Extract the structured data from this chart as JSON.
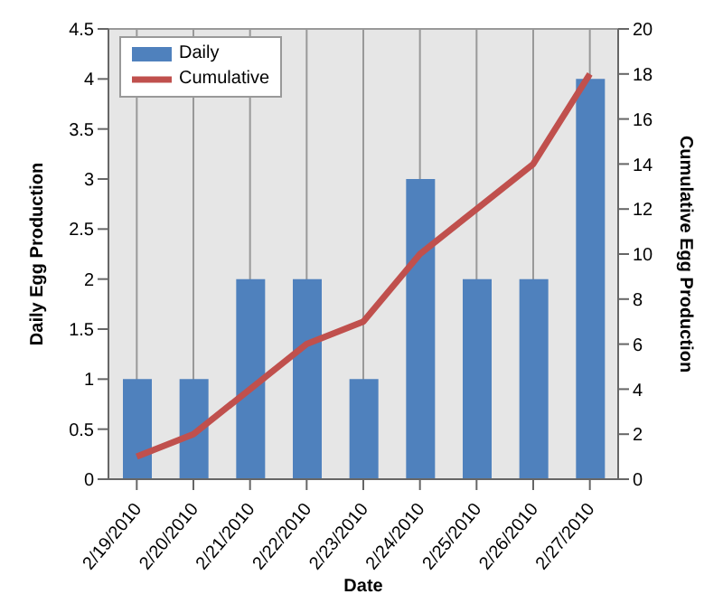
{
  "chart_data": {
    "type": "bar",
    "xlabel": "Date",
    "ylabel": "Daily Egg Production",
    "y2label": "Cumulative Egg Production",
    "categories": [
      "2/19/2010",
      "2/20/2010",
      "2/21/2010",
      "2/22/2010",
      "2/23/2010",
      "2/24/2010",
      "2/25/2010",
      "2/26/2010",
      "2/27/2010"
    ],
    "series": [
      {
        "name": "Daily",
        "color": "#4f81bd",
        "values": [
          1,
          1,
          2,
          2,
          1,
          3,
          2,
          2,
          4
        ]
      },
      {
        "name": "Cumulative",
        "type": "line",
        "axis": "y2",
        "color": "#c0504d",
        "values": [
          1,
          2,
          4,
          6,
          7,
          10,
          12,
          14,
          18
        ]
      }
    ],
    "ylim": [
      0,
      4.5
    ],
    "yticks": [
      0,
      0.5,
      1,
      1.5,
      2,
      2.5,
      3,
      3.5,
      4,
      4.5
    ],
    "y2lim": [
      0,
      20
    ],
    "y2ticks": [
      0,
      2,
      4,
      6,
      8,
      10,
      12,
      14,
      16,
      18,
      20
    ],
    "grid": true,
    "legend": "top left",
    "marker": "none"
  }
}
